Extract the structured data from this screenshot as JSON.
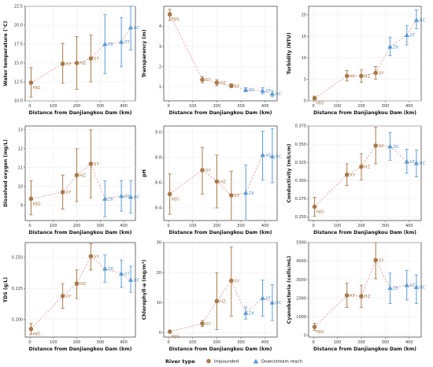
{
  "colors": {
    "impounded": "#a8794a",
    "downstream": "#5b9bd5"
  },
  "legend": {
    "title": "River type",
    "items": [
      "Impounded",
      "Downstream reach"
    ]
  },
  "chart_data": [
    {
      "type": "scatter",
      "ylabel": "Water temperature (°C)",
      "xlabel": "Distance from Danjiangkou Dam (km)",
      "xlim": [
        -20,
        450
      ],
      "ylim": [
        10,
        22.5
      ],
      "xticks": [
        0,
        100,
        200,
        300,
        400
      ],
      "yticks": [
        10,
        12.5,
        15,
        17.5,
        20,
        22.5
      ],
      "points": [
        {
          "label": "HJG",
          "x": 5,
          "y": 12.4,
          "lo": 10.5,
          "hi": 14.4,
          "g": "impounded"
        },
        {
          "label": "XY",
          "x": 140,
          "y": 14.9,
          "lo": 12.3,
          "hi": 17.6,
          "g": "impounded"
        },
        {
          "label": "HZ",
          "x": 200,
          "y": 15.0,
          "lo": 11.5,
          "hi": 18.5,
          "g": "impounded"
        },
        {
          "label": "SY",
          "x": 260,
          "y": 15.6,
          "lo": 12.5,
          "hi": 18.7,
          "g": "impounded"
        },
        {
          "label": "ZK",
          "x": 320,
          "y": 17.5,
          "lo": 13.6,
          "hi": 21.4,
          "g": "downstream"
        },
        {
          "label": "XT",
          "x": 390,
          "y": 17.8,
          "lo": 14.5,
          "hi": 21.0,
          "g": "downstream"
        },
        {
          "label": "HC",
          "x": 430,
          "y": 19.7,
          "lo": 16.7,
          "hi": 22.5,
          "g": "downstream"
        }
      ]
    },
    {
      "type": "scatter",
      "ylabel": "Transparency (m)",
      "xlabel": "Distance from Danjiangkou Dam (km)",
      "xlim": [
        -20,
        450
      ],
      "ylim": [
        0.3,
        5
      ],
      "xticks": [
        0,
        100,
        200,
        300,
        400
      ],
      "yticks": [
        1,
        2,
        3,
        4
      ],
      "points": [
        {
          "label": "HJG",
          "x": 5,
          "y": 4.6,
          "lo": 4.3,
          "hi": 4.85,
          "g": "impounded"
        },
        {
          "label": "XY",
          "x": 140,
          "y": 1.35,
          "lo": 1.2,
          "hi": 1.5,
          "g": "impounded"
        },
        {
          "label": "HZ",
          "x": 200,
          "y": 1.2,
          "lo": 1.05,
          "hi": 1.35,
          "g": "impounded"
        },
        {
          "label": "SY",
          "x": 260,
          "y": 1.05,
          "lo": 0.95,
          "hi": 1.15,
          "g": "impounded"
        },
        {
          "label": "ZK",
          "x": 320,
          "y": 0.85,
          "lo": 0.75,
          "hi": 0.95,
          "g": "downstream"
        },
        {
          "label": "XT",
          "x": 390,
          "y": 0.8,
          "lo": 0.65,
          "hi": 0.95,
          "g": "downstream"
        },
        {
          "label": "HC",
          "x": 430,
          "y": 0.65,
          "lo": 0.5,
          "hi": 0.8,
          "g": "downstream"
        }
      ]
    },
    {
      "type": "scatter",
      "ylabel": "Turbidity (NTU)",
      "xlabel": "Distance from Danjiangkou Dam (km)",
      "xlim": [
        -20,
        450
      ],
      "ylim": [
        0,
        22
      ],
      "xticks": [
        0,
        100,
        200,
        300,
        400
      ],
      "yticks": [
        0,
        5,
        10,
        15,
        20
      ],
      "points": [
        {
          "label": "HJG",
          "x": 5,
          "y": 0.6,
          "lo": 0.2,
          "hi": 1.1,
          "g": "impounded"
        },
        {
          "label": "XY",
          "x": 140,
          "y": 5.8,
          "lo": 4.6,
          "hi": 7.1,
          "g": "impounded"
        },
        {
          "label": "HZ",
          "x": 200,
          "y": 5.8,
          "lo": 4.3,
          "hi": 7.2,
          "g": "impounded"
        },
        {
          "label": "SY",
          "x": 260,
          "y": 6.5,
          "lo": 5.0,
          "hi": 8.0,
          "g": "impounded"
        },
        {
          "label": "ZK",
          "x": 320,
          "y": 12.6,
          "lo": 10.5,
          "hi": 14.8,
          "g": "downstream"
        },
        {
          "label": "XT",
          "x": 390,
          "y": 15.3,
          "lo": 13.0,
          "hi": 17.5,
          "g": "downstream"
        },
        {
          "label": "HC",
          "x": 430,
          "y": 18.8,
          "lo": 16.8,
          "hi": 21.2,
          "g": "downstream"
        }
      ]
    },
    {
      "type": "scatter",
      "ylabel": "Dissolved oxygen (mg/L)",
      "xlabel": "Distance from Danjiangkou Dam (km)",
      "xlim": [
        -20,
        450
      ],
      "ylim": [
        8.2,
        13.2
      ],
      "xticks": [
        0,
        100,
        200,
        300,
        400
      ],
      "yticks": [
        9,
        10,
        11,
        12,
        13
      ],
      "points": [
        {
          "label": "HJG",
          "x": 5,
          "y": 9.35,
          "lo": 8.5,
          "hi": 10.3,
          "g": "impounded"
        },
        {
          "label": "XY",
          "x": 140,
          "y": 9.7,
          "lo": 8.8,
          "hi": 10.6,
          "g": "impounded"
        },
        {
          "label": "HZ",
          "x": 200,
          "y": 10.6,
          "lo": 9.2,
          "hi": 12.0,
          "g": "impounded"
        },
        {
          "label": "SY",
          "x": 260,
          "y": 11.2,
          "lo": 9.4,
          "hi": 13.0,
          "g": "impounded"
        },
        {
          "label": "ZK",
          "x": 320,
          "y": 9.35,
          "lo": 8.4,
          "hi": 10.3,
          "g": "downstream"
        },
        {
          "label": "XT",
          "x": 390,
          "y": 9.5,
          "lo": 8.7,
          "hi": 10.3,
          "g": "downstream"
        },
        {
          "label": "HC",
          "x": 430,
          "y": 9.45,
          "lo": 8.6,
          "hi": 10.3,
          "g": "downstream"
        }
      ]
    },
    {
      "type": "scatter",
      "ylabel": "pH",
      "xlabel": "Distance from Danjiangkou Dam (km)",
      "xlim": [
        -20,
        450
      ],
      "ylim": [
        8.3,
        9.05
      ],
      "xticks": [
        0,
        100,
        200,
        300,
        400
      ],
      "yticks": [
        8.4,
        8.6,
        8.8,
        9.0
      ],
      "points": [
        {
          "label": "HJG",
          "x": 5,
          "y": 8.51,
          "lo": 8.35,
          "hi": 8.67,
          "g": "impounded"
        },
        {
          "label": "XY",
          "x": 140,
          "y": 8.7,
          "lo": 8.51,
          "hi": 8.88,
          "g": "impounded"
        },
        {
          "label": "HZ",
          "x": 200,
          "y": 8.61,
          "lo": 8.4,
          "hi": 8.82,
          "g": "impounded"
        },
        {
          "label": "SY",
          "x": 260,
          "y": 8.5,
          "lo": 8.3,
          "hi": 8.69,
          "g": "impounded"
        },
        {
          "label": "ZK",
          "x": 320,
          "y": 8.52,
          "lo": 8.3,
          "hi": 8.74,
          "g": "downstream"
        },
        {
          "label": "XT",
          "x": 390,
          "y": 8.82,
          "lo": 8.62,
          "hi": 9.01,
          "g": "downstream"
        },
        {
          "label": "HC",
          "x": 430,
          "y": 8.81,
          "lo": 8.6,
          "hi": 9.03,
          "g": "downstream"
        }
      ]
    },
    {
      "type": "scatter",
      "ylabel": "Conductivity (mS/cm)",
      "xlabel": "Distance from Danjiangkou Dam (km)",
      "xlim": [
        -20,
        450
      ],
      "ylim": [
        0.245,
        0.375
      ],
      "xticks": [
        0,
        100,
        200,
        300,
        400
      ],
      "yticks": [
        0.25,
        0.275,
        0.3,
        0.325,
        0.35,
        0.375
      ],
      "points": [
        {
          "label": "HJG",
          "x": 5,
          "y": 0.264,
          "lo": 0.251,
          "hi": 0.277,
          "g": "impounded"
        },
        {
          "label": "XY",
          "x": 140,
          "y": 0.308,
          "lo": 0.293,
          "hi": 0.323,
          "g": "impounded"
        },
        {
          "label": "HZ",
          "x": 200,
          "y": 0.319,
          "lo": 0.301,
          "hi": 0.337,
          "g": "impounded"
        },
        {
          "label": "SY",
          "x": 260,
          "y": 0.348,
          "lo": 0.323,
          "hi": 0.373,
          "g": "impounded"
        },
        {
          "label": "ZK",
          "x": 320,
          "y": 0.347,
          "lo": 0.328,
          "hi": 0.366,
          "g": "downstream"
        },
        {
          "label": "XT",
          "x": 390,
          "y": 0.326,
          "lo": 0.31,
          "hi": 0.343,
          "g": "downstream"
        },
        {
          "label": "HC",
          "x": 430,
          "y": 0.324,
          "lo": 0.305,
          "hi": 0.342,
          "g": "downstream"
        }
      ]
    },
    {
      "type": "scatter",
      "ylabel": "TDS (g/L)",
      "xlabel": "Distance from Danjiangkou Dam (km)",
      "xlim": [
        -20,
        450
      ],
      "ylim": [
        0.186,
        0.262
      ],
      "xticks": [
        0,
        100,
        200,
        300,
        400
      ],
      "yticks": [
        0.2,
        0.225,
        0.25
      ],
      "points": [
        {
          "label": "HJG",
          "x": 5,
          "y": 0.1925,
          "lo": 0.188,
          "hi": 0.197,
          "g": "impounded"
        },
        {
          "label": "XY",
          "x": 140,
          "y": 0.219,
          "lo": 0.209,
          "hi": 0.229,
          "g": "impounded"
        },
        {
          "label": "HZ",
          "x": 200,
          "y": 0.229,
          "lo": 0.217,
          "hi": 0.24,
          "g": "impounded"
        },
        {
          "label": "SY",
          "x": 260,
          "y": 0.251,
          "lo": 0.24,
          "hi": 0.261,
          "g": "impounded"
        },
        {
          "label": "ZK",
          "x": 320,
          "y": 0.241,
          "lo": 0.23,
          "hi": 0.252,
          "g": "downstream"
        },
        {
          "label": "XT",
          "x": 390,
          "y": 0.237,
          "lo": 0.226,
          "hi": 0.248,
          "g": "downstream"
        },
        {
          "label": "HC",
          "x": 430,
          "y": 0.232,
          "lo": 0.222,
          "hi": 0.243,
          "g": "downstream"
        }
      ]
    },
    {
      "type": "scatter",
      "ylabel": "Chlorophyll-a (mg/m³)",
      "xlabel": "Distance from Danjiangkou Dam (km)",
      "xlim": [
        -20,
        450
      ],
      "ylim": [
        -1.5,
        30
      ],
      "xticks": [
        0,
        100,
        200,
        300,
        400
      ],
      "yticks": [
        0,
        10,
        20,
        30
      ],
      "points": [
        {
          "label": "HJG",
          "x": 5,
          "y": 0.3,
          "lo": 0.0,
          "hi": 0.8,
          "g": "impounded"
        },
        {
          "label": "XY",
          "x": 140,
          "y": 3.0,
          "lo": 2.0,
          "hi": 4.0,
          "g": "impounded"
        },
        {
          "label": "HZ",
          "x": 200,
          "y": 10.5,
          "lo": 1.0,
          "hi": 20.0,
          "g": "impounded"
        },
        {
          "label": "SY",
          "x": 260,
          "y": 17.3,
          "lo": 5.5,
          "hi": 28.5,
          "g": "impounded"
        },
        {
          "label": "ZK",
          "x": 320,
          "y": 6.5,
          "lo": 4.5,
          "hi": 8.5,
          "g": "downstream"
        },
        {
          "label": "XT",
          "x": 390,
          "y": 11.5,
          "lo": 5.5,
          "hi": 17.5,
          "g": "downstream"
        },
        {
          "label": "HC",
          "x": 430,
          "y": 10.0,
          "lo": 4.0,
          "hi": 16.0,
          "g": "downstream"
        }
      ]
    },
    {
      "type": "scatter",
      "ylabel": "Cyanobacteria (cells/mL)",
      "xlabel": "Distance from Danjiangkou Dam (km)",
      "xlim": [
        -20,
        450
      ],
      "ylim": [
        -100,
        5000
      ],
      "xticks": [
        0,
        100,
        200,
        300,
        400
      ],
      "yticks": [
        0,
        1000,
        2000,
        3000,
        4000,
        5000
      ],
      "points": [
        {
          "label": "HJG",
          "x": 5,
          "y": 450,
          "lo": 250,
          "hi": 650,
          "g": "impounded"
        },
        {
          "label": "XY",
          "x": 140,
          "y": 2150,
          "lo": 1500,
          "hi": 2800,
          "g": "impounded"
        },
        {
          "label": "HZ",
          "x": 200,
          "y": 2100,
          "lo": 1500,
          "hi": 2700,
          "g": "impounded"
        },
        {
          "label": "SY",
          "x": 260,
          "y": 4050,
          "lo": 3050,
          "hi": 5000,
          "g": "impounded"
        },
        {
          "label": "ZK",
          "x": 320,
          "y": 2550,
          "lo": 1700,
          "hi": 3350,
          "g": "downstream"
        },
        {
          "label": "XT",
          "x": 390,
          "y": 2700,
          "lo": 1900,
          "hi": 3500,
          "g": "downstream"
        },
        {
          "label": "HC",
          "x": 430,
          "y": 2600,
          "lo": 1700,
          "hi": 3250,
          "g": "downstream"
        }
      ]
    }
  ]
}
